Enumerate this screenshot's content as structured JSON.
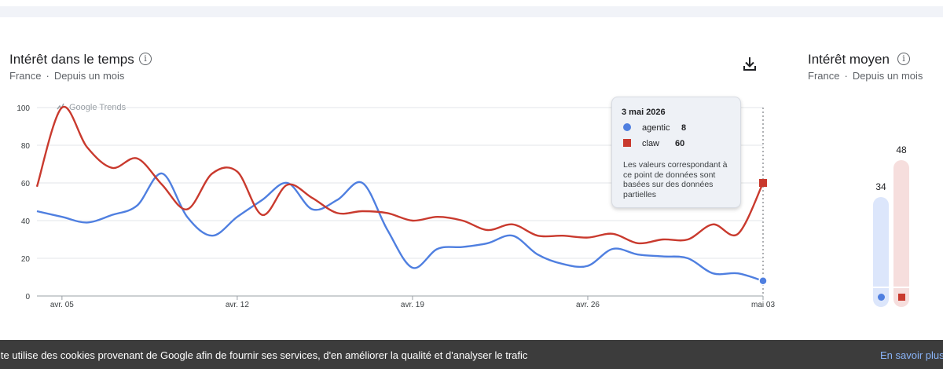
{
  "interest_over_time": {
    "title": "Intérêt dans le temps",
    "region": "France",
    "period": "Depuis un mois",
    "separator": "·",
    "watermark": "Google Trends"
  },
  "average_interest": {
    "title": "Intérêt moyen",
    "region": "France",
    "period": "Depuis un mois",
    "separator": "·",
    "values": [
      {
        "term": "agentic",
        "value": "34",
        "ratio": 0.34,
        "color": "#4f7fe0",
        "light": "#dce6fb"
      },
      {
        "term": "claw",
        "value": "48",
        "ratio": 0.48,
        "color": "#c93a2e",
        "light": "#f6dedd"
      }
    ]
  },
  "tooltip": {
    "date": "3 mai 2026",
    "rows": [
      {
        "term": "agentic",
        "value": "8"
      },
      {
        "term": "claw",
        "value": "60"
      }
    ],
    "note": "Les valeurs correspondant à ce point de données sont basées sur des données partielles"
  },
  "cookie_banner": {
    "text": "ite utilise des cookies provenant de Google afin de fournir ses services, d'en améliorer la qualité et d'analyser le trafic",
    "link": "En savoir plus"
  },
  "icons": {
    "info": "info-icon",
    "download": "download-icon"
  },
  "chart_data": {
    "type": "line",
    "ylim": [
      0,
      100
    ],
    "yticks": [
      "100",
      "80",
      "60",
      "40",
      "20",
      "0"
    ],
    "xticks": [
      {
        "label": "avr. 05",
        "index": 1
      },
      {
        "label": "avr. 12",
        "index": 8
      },
      {
        "label": "avr. 19",
        "index": 15
      },
      {
        "label": "avr. 26",
        "index": 22
      },
      {
        "label": "mai 03",
        "index": 29
      }
    ],
    "x": [
      "avr. 04",
      "avr. 05",
      "avr. 06",
      "avr. 07",
      "avr. 08",
      "avr. 09",
      "avr. 10",
      "avr. 11",
      "avr. 12",
      "avr. 13",
      "avr. 14",
      "avr. 15",
      "avr. 16",
      "avr. 17",
      "avr. 18",
      "avr. 19",
      "avr. 20",
      "avr. 21",
      "avr. 22",
      "avr. 23",
      "avr. 24",
      "avr. 25",
      "avr. 26",
      "avr. 27",
      "avr. 28",
      "avr. 29",
      "avr. 30",
      "mai 01",
      "mai 02",
      "mai 03"
    ],
    "series": [
      {
        "name": "agentic",
        "color": "#4f7fe0",
        "values": [
          45,
          42,
          39,
          43,
          48,
          65,
          42,
          32,
          42,
          51,
          60,
          46,
          51,
          60,
          35,
          15,
          25,
          26,
          28,
          32,
          22,
          17,
          16,
          25,
          22,
          21,
          20,
          12,
          12,
          8
        ]
      },
      {
        "name": "claw",
        "color": "#c93a2e",
        "values": [
          58,
          100,
          79,
          68,
          73,
          59,
          46,
          65,
          66,
          43,
          59,
          52,
          44,
          45,
          44,
          40,
          42,
          40,
          35,
          38,
          32,
          32,
          31,
          33,
          28,
          30,
          30,
          38,
          33,
          60
        ]
      }
    ],
    "grid": true
  }
}
